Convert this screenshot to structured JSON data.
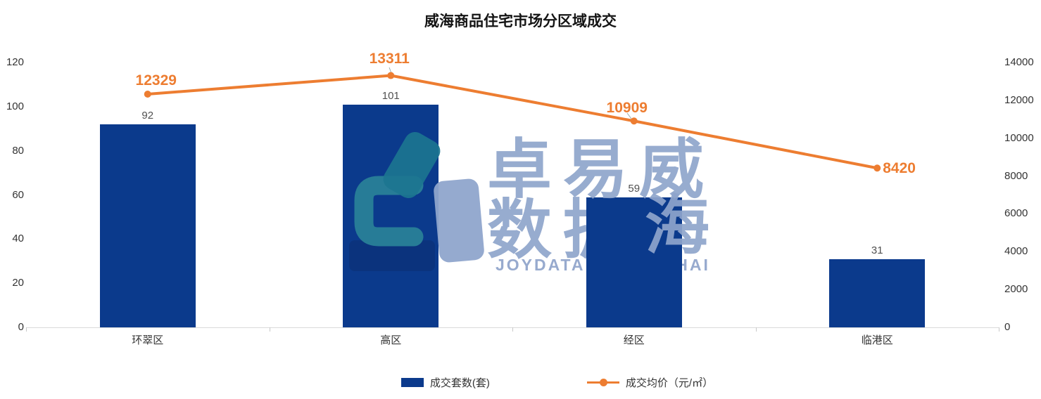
{
  "title": "威海商品住宅市场分区域成交",
  "chart_data": {
    "type": "bar",
    "subtype": "bar-line-combo",
    "title": "威海商品住宅市场分区域成交",
    "categories": [
      "环翠区",
      "高区",
      "经区",
      "临港区"
    ],
    "series": [
      {
        "name": "成交套数(套)",
        "type": "bar",
        "y_axis": "left",
        "values": [
          92,
          101,
          59,
          31
        ],
        "color": "#0B3A8C"
      },
      {
        "name": "成交均价（元/㎡）",
        "type": "line",
        "y_axis": "right",
        "values": [
          12329,
          13311,
          10909,
          8420
        ],
        "color": "#ED7D31"
      }
    ],
    "left_axis": {
      "range": [
        0,
        120
      ],
      "ticks": [
        0,
        20,
        40,
        60,
        80,
        100,
        120
      ]
    },
    "right_axis": {
      "range": [
        0,
        14000
      ],
      "ticks": [
        0,
        2000,
        4000,
        6000,
        8000,
        10000,
        12000,
        14000
      ]
    },
    "grid": false,
    "legend_position": "bottom",
    "data_labels": true
  },
  "watermark": {
    "brand_line1": "卓易威",
    "brand_line2": "数据",
    "brand_line2_overlay": "海",
    "caption": "JOYDATAINFO WEIHAI"
  },
  "colors": {
    "bar": "#0B3A8C",
    "line": "#ED7D31",
    "axis_text": "#333333",
    "axis_line": "#D9D9D9",
    "watermark_text": "#8FA5CC",
    "logo_teal": "#2A8298"
  }
}
